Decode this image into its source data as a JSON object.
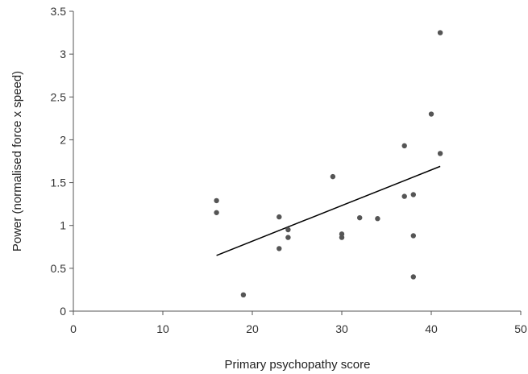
{
  "chart_data": {
    "type": "scatter",
    "title": "",
    "xlabel": "Primary psychopathy score",
    "ylabel": "Power (normalised force x speed)",
    "xlim": [
      0,
      50
    ],
    "ylim": [
      0,
      3.5
    ],
    "x_ticks": [
      0,
      10,
      20,
      30,
      40,
      50
    ],
    "y_ticks": [
      0,
      0.5,
      1,
      1.5,
      2,
      2.5,
      3,
      3.5
    ],
    "x_tick_labels": [
      "0",
      "10",
      "20",
      "30",
      "40",
      "50"
    ],
    "y_tick_labels": [
      "0",
      "0.5",
      "1",
      "1.5",
      "2",
      "2.5",
      "3",
      "3.5"
    ],
    "grid": false,
    "series": [
      {
        "points": [
          {
            "x": 16,
            "y": 1.29
          },
          {
            "x": 16,
            "y": 1.15
          },
          {
            "x": 19,
            "y": 0.19
          },
          {
            "x": 23,
            "y": 1.1
          },
          {
            "x": 23,
            "y": 0.73
          },
          {
            "x": 24,
            "y": 0.95
          },
          {
            "x": 24,
            "y": 0.86
          },
          {
            "x": 29,
            "y": 1.57
          },
          {
            "x": 30,
            "y": 0.9
          },
          {
            "x": 30,
            "y": 0.86
          },
          {
            "x": 32,
            "y": 1.09
          },
          {
            "x": 34,
            "y": 1.08
          },
          {
            "x": 37,
            "y": 1.93
          },
          {
            "x": 37,
            "y": 1.34
          },
          {
            "x": 38,
            "y": 1.36
          },
          {
            "x": 38,
            "y": 0.88
          },
          {
            "x": 38,
            "y": 0.4
          },
          {
            "x": 40,
            "y": 2.3
          },
          {
            "x": 41,
            "y": 3.25
          },
          {
            "x": 41,
            "y": 1.84
          }
        ]
      }
    ],
    "trendline": {
      "type": "linear",
      "x_start": 16,
      "y_start": 0.65,
      "x_end": 41,
      "y_end": 1.69
    },
    "colors": {
      "points": "#555555",
      "trendline": "#000000",
      "axis": "#555555"
    }
  }
}
